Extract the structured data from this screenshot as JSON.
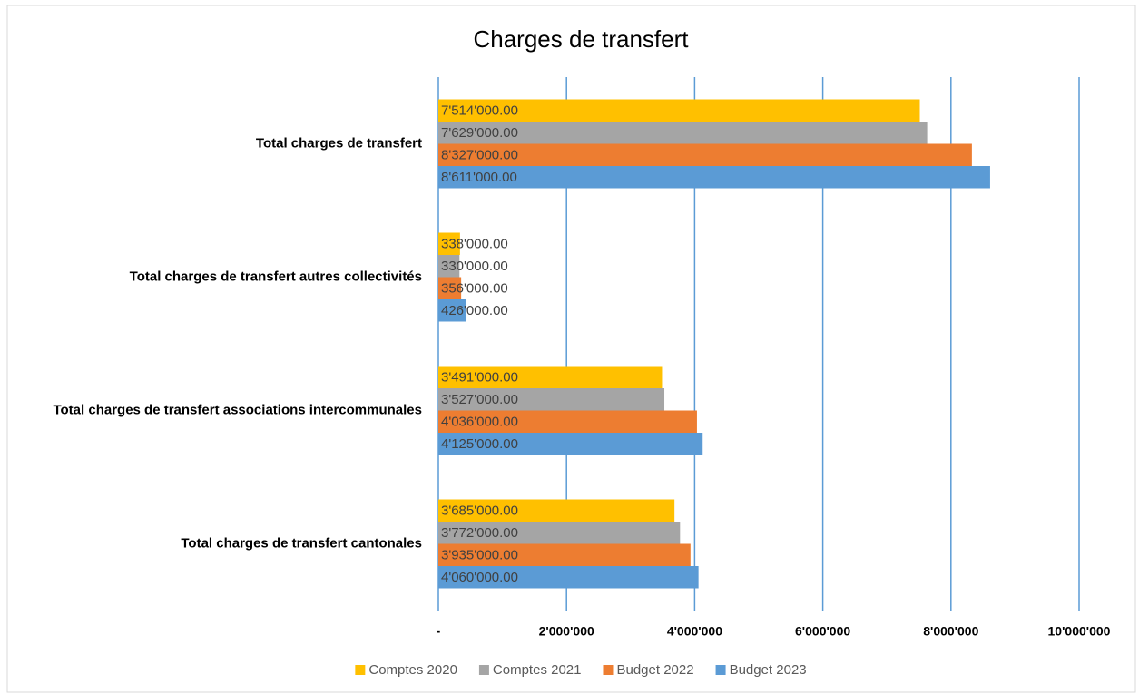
{
  "chart_data": {
    "type": "hbar",
    "title": "Charges de transfert",
    "categories": [
      "Total charges de transfert",
      "Total charges de transfert autres collectivités",
      "Total charges de transfert associations intercommunales",
      "Total charges de transfert cantonales"
    ],
    "series": [
      {
        "name": "Comptes 2020",
        "color": "#ffc000",
        "values": [
          7514000,
          338000,
          3491000,
          3685000
        ],
        "value_labels": [
          "7'514'000.00",
          "338'000.00",
          "3'491'000.00",
          "3'685'000.00"
        ]
      },
      {
        "name": "Comptes 2021",
        "color": "#a5a5a5",
        "values": [
          7629000,
          330000,
          3527000,
          3772000
        ],
        "value_labels": [
          "7'629'000.00",
          "330'000.00",
          "3'527'000.00",
          "3'772'000.00"
        ]
      },
      {
        "name": "Budget 2022",
        "color": "#ed7d31",
        "values": [
          8327000,
          356000,
          4036000,
          3935000
        ],
        "value_labels": [
          "8'327'000.00",
          "356'000.00",
          "4'036'000.00",
          "3'935'000.00"
        ]
      },
      {
        "name": "Budget 2023",
        "color": "#5b9bd5",
        "values": [
          8611000,
          426000,
          4125000,
          4060000
        ],
        "value_labels": [
          "8'611'000.00",
          "426'000.00",
          "4'125'000.00",
          "4'060'000.00"
        ]
      }
    ],
    "xlim": [
      0,
      10000000
    ],
    "xticks": [
      {
        "value": 0,
        "label": "-"
      },
      {
        "value": 2000000,
        "label": "2'000'000"
      },
      {
        "value": 4000000,
        "label": "4'000'000"
      },
      {
        "value": 6000000,
        "label": "6'000'000"
      },
      {
        "value": 8000000,
        "label": "8'000'000"
      },
      {
        "value": 10000000,
        "label": "10'000'000"
      }
    ],
    "grid": true,
    "legend": "bottom"
  }
}
